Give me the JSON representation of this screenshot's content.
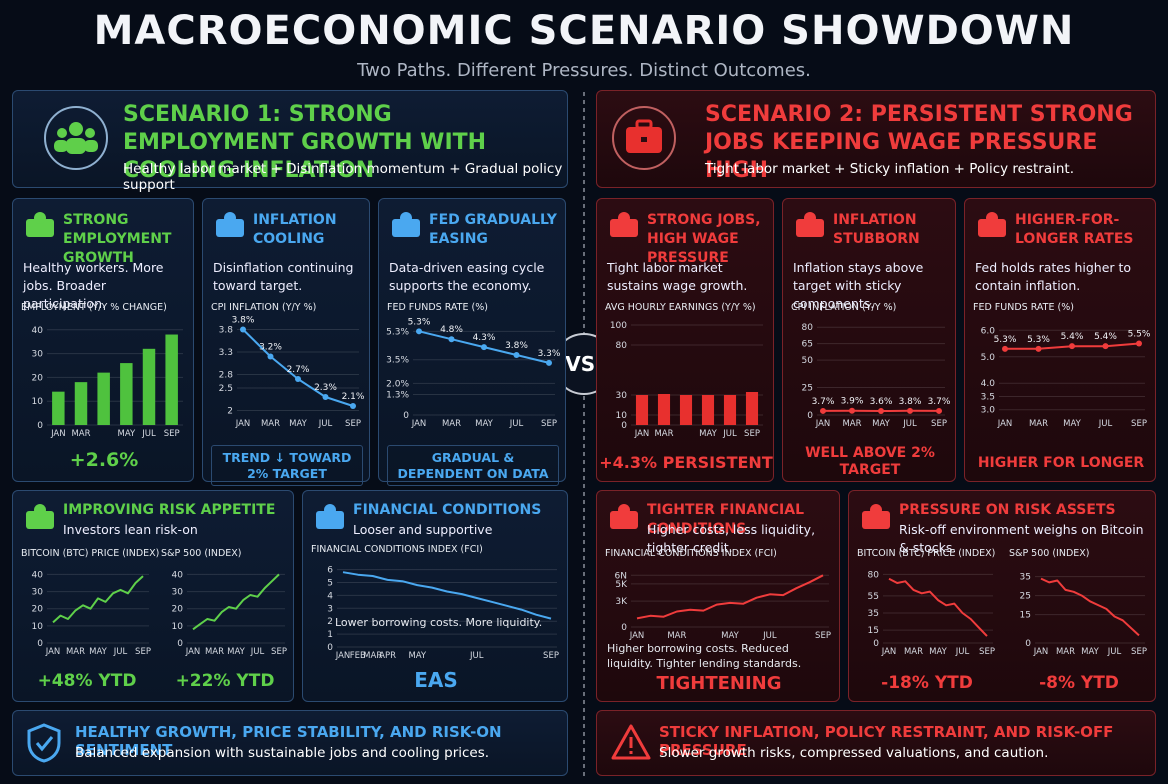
{
  "header": {
    "title": "MACROECONOMIC SCENARIO SHOWDOWN",
    "subtitle": "Two Paths. Different Pressures. Distinct Outcomes."
  },
  "vs": "VS.",
  "left": {
    "heading": "SCENARIO 1: STRONG EMPLOYMENT GROWTH WITH COOLING INFLATION",
    "subheading": "Healthy labor market + Disinflation momentum + Gradual policy support",
    "cards": [
      {
        "title": "STRONG EMPLOYMENT GROWTH",
        "text": "Healthy workers. More jobs. Broader participation.",
        "footers": [
          "+2.6%"
        ]
      },
      {
        "title": "INFLATION COOLING",
        "text": "Disinflation continuing toward target.",
        "footers": [
          "TREND ↓ TOWARD 2% TARGET"
        ]
      },
      {
        "title": "FED GRADUALLY EASING",
        "text": "Data-driven easing cycle supports the economy.",
        "footers": [
          "GRADUAL & DEPENDENT ON DATA"
        ]
      },
      {
        "title": "IMPROVING RISK APPETITE",
        "text": "Investors lean risk-on",
        "footers": [
          "+48% YTD",
          "+22% YTD"
        ]
      },
      {
        "title": "FINANCIAL CONDITIONS",
        "text": "Looser and supportive",
        "note": "Lower borrowing costs. More liquidity.",
        "footers": [
          "EAS"
        ]
      }
    ],
    "bottom": {
      "title": "HEALTHY GROWTH, PRICE STABILITY, AND RISK-ON SENTIMENT",
      "text": "Balanced expansion with sustainable jobs and cooling prices."
    }
  },
  "right": {
    "heading": "SCENARIO 2: PERSISTENT STRONG JOBS KEEPING WAGE PRESSURE HIGH",
    "subheading": "Tight labor market + Sticky inflation + Policy restraint.",
    "cards": [
      {
        "title": "STRONG JOBS, HIGH WAGE PRESSURE",
        "text": "Tight labor market sustains wage growth.",
        "footers": [
          "+4.3% PERSISTENT"
        ]
      },
      {
        "title": "INFLATION STUBBORN",
        "text": "Inflation stays above target with sticky components.",
        "footers": [
          "WELL ABOVE 2% TARGET"
        ]
      },
      {
        "title": "HIGHER-FOR-LONGER RATES",
        "text": "Fed holds rates higher to contain inflation.",
        "footers": [
          "HIGHER FOR LONGER"
        ]
      },
      {
        "title": "TIGHTER FINANCIAL CONDITIONS",
        "text": "Higher costs, less liquidity, tighter credit.",
        "note": "Higher borrowing costs. Reduced liquidity. Tighter lending standards.",
        "footers": [
          "TIGHTENING"
        ]
      },
      {
        "title": "PRESSURE ON RISK ASSETS",
        "text": "Risk-off environment weighs on Bitcoin & stocks.",
        "footers": [
          "-18% YTD",
          "-8% YTD"
        ]
      }
    ],
    "bottom": {
      "title": "STICKY INFLATION, POLICY RESTRAINT, AND RISK-OFF PRESSURE",
      "text": "Slower growth risks, compressed valuations, and caution."
    }
  },
  "chart_data": [
    {
      "type": "bar",
      "title": "EMPLOYMENT (Y/Y % CHANGE)",
      "color": "#4fc23e",
      "categories": [
        "JAN",
        "MAR",
        null,
        "MAY",
        "JUL",
        "SEP"
      ],
      "values": [
        14,
        18,
        22,
        26,
        32,
        38
      ],
      "ylim": [
        0,
        42
      ],
      "yticks": [
        0,
        10,
        20,
        30,
        40
      ]
    },
    {
      "type": "line",
      "title": "CPI INFLATION (Y/Y %)",
      "color": "#4aa8f0",
      "categories": [
        "JAN",
        "MAR",
        "MAY",
        "JUL",
        "SEP"
      ],
      "values": [
        3.8,
        3.2,
        2.7,
        2.3,
        2.1
      ],
      "value_labels": [
        "3.8%",
        "3.2%",
        "2.7%",
        "2.3%",
        "2.1%"
      ],
      "ylim": [
        1.9,
        3.9
      ],
      "yticks": [
        2,
        2.5,
        2.8,
        3.3,
        3.8
      ]
    },
    {
      "type": "line",
      "title": "FED FUNDS RATE (%)",
      "color": "#4aa8f0",
      "categories": [
        "JAN",
        "MAR",
        "MAY",
        "JUL",
        "SEP"
      ],
      "values": [
        5.3,
        4.8,
        4.3,
        3.8,
        3.3
      ],
      "value_labels": [
        "5.3%",
        "4.8%",
        "4.3%",
        "3.8%",
        "3.3%"
      ],
      "ylim": [
        0,
        5.7
      ],
      "yticks": [
        0,
        {
          "value": 1.3,
          "label": "1.3%"
        },
        {
          "value": 2,
          "label": "2.0%"
        },
        {
          "value": 3.5,
          "label": "3.5%"
        },
        {
          "value": 5.3,
          "label": "5.3%"
        }
      ]
    },
    {
      "type": "line",
      "title": "BITCOIN (BTC) PRICE (INDEX)",
      "color": "#5fd04a",
      "categories": [
        "JAN",
        null,
        null,
        "MAR",
        null,
        null,
        "MAY",
        null,
        null,
        "JUL",
        null,
        null,
        "SEP"
      ],
      "values": [
        12,
        16,
        14,
        19,
        22,
        20,
        26,
        24,
        29,
        31,
        29,
        35,
        39
      ],
      "ylim": [
        0,
        42
      ],
      "yticks": [
        0,
        10,
        20,
        30,
        40
      ]
    },
    {
      "type": "line",
      "title": "S&P 500 (INDEX)",
      "color": "#5fd04a",
      "categories": [
        "JAN",
        null,
        null,
        "MAR",
        null,
        null,
        "MAY",
        null,
        null,
        "JUL",
        null,
        null,
        "SEP"
      ],
      "values": [
        8,
        11,
        14,
        13,
        18,
        21,
        20,
        25,
        28,
        27,
        32,
        36,
        40
      ],
      "ylim": [
        0,
        42
      ],
      "yticks": [
        0,
        10,
        20,
        30,
        40
      ]
    },
    {
      "type": "line",
      "title": "FINANCIAL CONDITIONS INDEX (FCI)",
      "color": "#4aa8f0",
      "categories": [
        "JAN",
        "FEB",
        "MAR",
        "APR",
        null,
        "MAY",
        null,
        null,
        null,
        "JUL",
        null,
        null,
        null,
        null,
        "SEP"
      ],
      "values": [
        5.8,
        5.6,
        5.5,
        5.2,
        5.1,
        4.8,
        4.6,
        4.3,
        4.1,
        3.8,
        3.5,
        3.2,
        2.9,
        2.5,
        2.2
      ],
      "ylim": [
        0,
        6.2
      ],
      "yticks": [
        0,
        1,
        2,
        3,
        4,
        5,
        6
      ]
    },
    {
      "type": "bar",
      "title": "AVG HOURLY EARNINGS (Y/Y %)",
      "color": "#e8302e",
      "categories": [
        "JAN",
        "MAR",
        null,
        "MAY",
        "JUL",
        "SEP"
      ],
      "values": [
        30,
        31,
        30,
        30,
        30,
        33
      ],
      "ylim": [
        0,
        100
      ],
      "yticks": [
        0,
        10,
        30,
        80,
        100
      ]
    },
    {
      "type": "line",
      "title": "CPI INFLATION (Y/Y %)",
      "color": "#f03c3c",
      "categories": [
        "JAN",
        "MAR",
        "MAY",
        "JUL",
        "SEP"
      ],
      "values": [
        3.7,
        3.9,
        3.6,
        3.8,
        3.7
      ],
      "value_labels": [
        "3.7%",
        "3.9%",
        "3.6%",
        "3.8%",
        "3.7%"
      ],
      "ylim": [
        0,
        82
      ],
      "yticks": [
        0,
        25,
        50,
        65,
        80
      ]
    },
    {
      "type": "line",
      "title": "FED FUNDS RATE (%)",
      "color": "#f03c3c",
      "categories": [
        "JAN",
        "MAR",
        "MAY",
        "JUL",
        "SEP"
      ],
      "values": [
        5.3,
        5.3,
        5.4,
        5.4,
        5.5
      ],
      "value_labels": [
        "5.3%",
        "5.3%",
        "5.4%",
        "5.4%",
        "5.5%"
      ],
      "ylim": [
        2.8,
        6.2
      ],
      "yticks": [
        {
          "value": 3,
          "label": "3.0"
        },
        3.5,
        {
          "value": 4,
          "label": "4.0"
        },
        {
          "value": 5,
          "label": "5.0"
        },
        {
          "value": 6,
          "label": "6.0"
        }
      ]
    },
    {
      "type": "line",
      "title": "FINANCIAL CONDITIONS INDEX (FCI)",
      "color": "#f03c3c",
      "categories": [
        "JAN",
        null,
        null,
        "MAR",
        null,
        null,
        null,
        "MAY",
        null,
        null,
        "JUL",
        null,
        null,
        null,
        "SEP"
      ],
      "values": [
        1000,
        1300,
        1200,
        1800,
        2000,
        1900,
        2600,
        2800,
        2700,
        3400,
        3800,
        3700,
        4500,
        5200,
        6000
      ],
      "ylim": [
        0,
        6500
      ],
      "yticks": [
        0,
        {
          "value": 3000,
          "label": "3K"
        },
        {
          "value": 5000,
          "label": "5K"
        },
        {
          "value": 6000,
          "label": "6N"
        }
      ]
    },
    {
      "type": "line",
      "title": "BITCOIN (BTC) PRICE (INDEX)",
      "color": "#f03c3c",
      "categories": [
        "JAN",
        null,
        null,
        "MAR",
        null,
        null,
        "MAY",
        null,
        null,
        "JUL",
        null,
        null,
        "SEP"
      ],
      "values": [
        75,
        70,
        72,
        62,
        58,
        60,
        50,
        44,
        46,
        35,
        28,
        18,
        8
      ],
      "ylim": [
        0,
        84
      ],
      "yticks": [
        0,
        15,
        35,
        55,
        80
      ]
    },
    {
      "type": "line",
      "title": "S&P 500 (INDEX)",
      "color": "#f03c3c",
      "categories": [
        "JAN",
        null,
        null,
        "MAR",
        null,
        null,
        "MAY",
        null,
        null,
        "JUL",
        null,
        null,
        "SEP"
      ],
      "values": [
        34,
        32,
        33,
        28,
        27,
        25,
        22,
        20,
        18,
        14,
        12,
        8,
        4
      ],
      "ylim": [
        0,
        38
      ],
      "yticks": [
        0,
        15,
        25,
        35
      ]
    }
  ]
}
